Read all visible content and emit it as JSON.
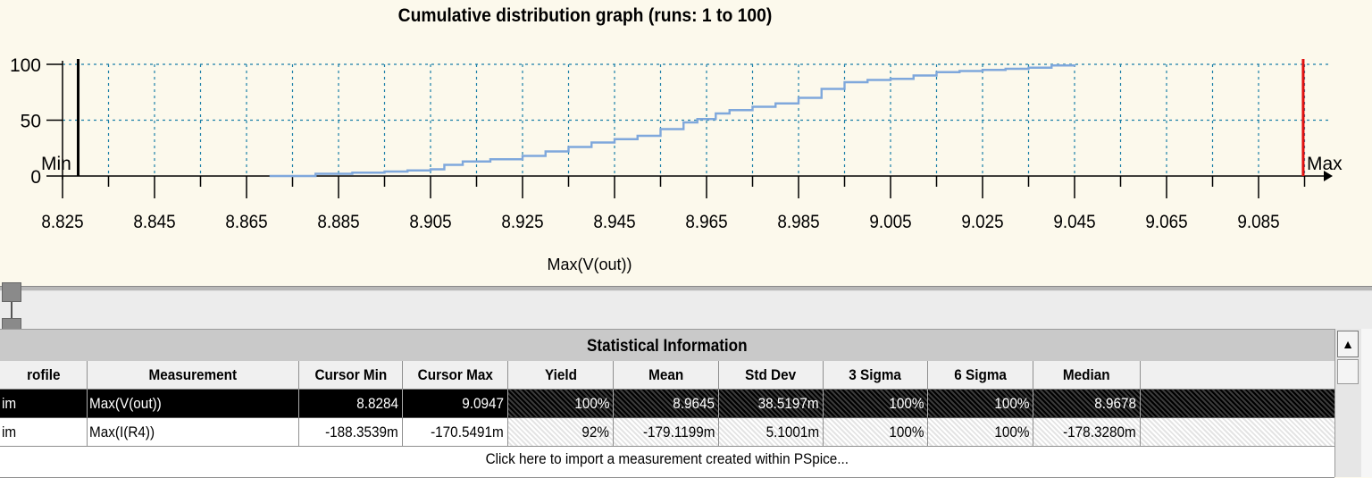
{
  "graph": {
    "title": "Cumulative distribution graph (runs: 1 to 100)",
    "min_marker_label": "Min",
    "max_marker_label": "Max",
    "min_marker_color": "#000000",
    "max_marker_color": "#e01010",
    "line_color": "#7fa8dc"
  },
  "chart_data": {
    "type": "line",
    "title": "Cumulative distribution graph (runs: 1 to 100)",
    "xlabel": "Max(V(out))",
    "ylabel": "",
    "xlim": [
      8.825,
      9.095
    ],
    "ylim": [
      0,
      100
    ],
    "grid": true,
    "x_ticks": [
      "8.825",
      "8.845",
      "8.865",
      "8.885",
      "8.905",
      "8.925",
      "8.945",
      "8.965",
      "8.985",
      "9.005",
      "9.025",
      "9.045",
      "9.065",
      "9.085"
    ],
    "y_ticks": [
      "100",
      "50",
      "0"
    ],
    "cursor_min": 8.8284,
    "cursor_max": 9.0947,
    "series": [
      {
        "x": [
          8.87,
          8.88,
          8.888,
          8.895,
          8.9,
          8.905,
          8.908,
          8.912,
          8.918,
          8.925,
          8.93,
          8.935,
          8.94,
          8.945,
          8.95,
          8.955,
          8.96,
          8.963,
          8.967,
          8.97,
          8.975,
          8.98,
          8.985,
          8.99,
          8.995,
          9.0,
          9.005,
          9.01,
          9.015,
          9.02,
          9.025,
          9.03,
          9.035,
          9.04,
          9.045
        ],
        "y": [
          0,
          2,
          3,
          4,
          5,
          6,
          10,
          13,
          15,
          18,
          22,
          26,
          30,
          33,
          36,
          42,
          48,
          51,
          56,
          59,
          62,
          65,
          70,
          78,
          84,
          86,
          87,
          90,
          93,
          94,
          95,
          96,
          97,
          99,
          100
        ]
      }
    ]
  },
  "stats": {
    "header": "Statistical Information",
    "columns": [
      "rofile",
      "Measurement",
      "Cursor Min",
      "Cursor Max",
      "Yield",
      "Mean",
      "Std Dev",
      "3 Sigma",
      "6 Sigma",
      "Median"
    ],
    "rows": [
      [
        "im",
        "Max(V(out))",
        "8.8284",
        "9.0947",
        "100%",
        "8.9645",
        "38.5197m",
        "100%",
        "100%",
        "8.9678"
      ],
      [
        "im",
        "Max(I(R4))",
        "-188.3539m",
        "-170.5491m",
        "92%",
        "-179.1199m",
        "5.1001m",
        "100%",
        "100%",
        "-178.3280m"
      ]
    ],
    "import_prompt": "Click here to import a measurement created within PSpice..."
  },
  "scrollbar": {
    "up_arrow": "▲"
  }
}
